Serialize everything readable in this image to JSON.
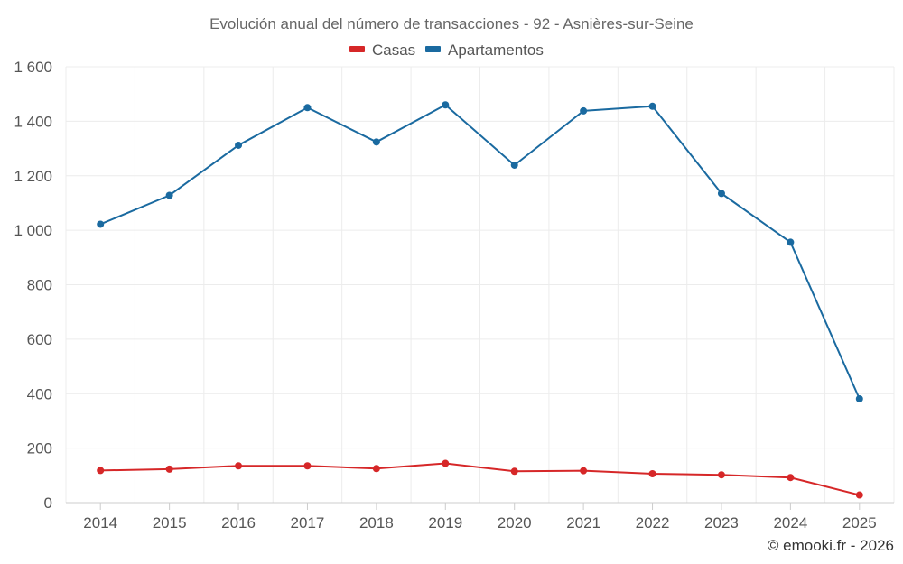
{
  "chart_data": {
    "type": "line",
    "title": "Evolución anual del número de transacciones - 92 - Asnières-sur-Seine",
    "categories": [
      "2014",
      "2015",
      "2016",
      "2017",
      "2018",
      "2019",
      "2020",
      "2021",
      "2022",
      "2023",
      "2024",
      "2025"
    ],
    "series": [
      {
        "name": "Casas",
        "color": "#d62728",
        "values": [
          118,
          123,
          135,
          135,
          125,
          144,
          115,
          117,
          106,
          102,
          92,
          28
        ]
      },
      {
        "name": "Apartamentos",
        "color": "#1a6aa0",
        "values": [
          1022,
          1128,
          1312,
          1450,
          1324,
          1460,
          1239,
          1438,
          1455,
          1135,
          956,
          381
        ]
      }
    ],
    "ylim": [
      0,
      1600
    ],
    "yticks": [
      0,
      200,
      400,
      600,
      800,
      1000,
      1200,
      1400,
      1600
    ],
    "ytick_labels": [
      "0",
      "200",
      "400",
      "600",
      "800",
      "1 000",
      "1 200",
      "1 400",
      "1 600"
    ],
    "xlabel": "",
    "ylabel": "",
    "grid": true,
    "legend_position": "top-center"
  },
  "credit": "© emooki.fr - 2026"
}
